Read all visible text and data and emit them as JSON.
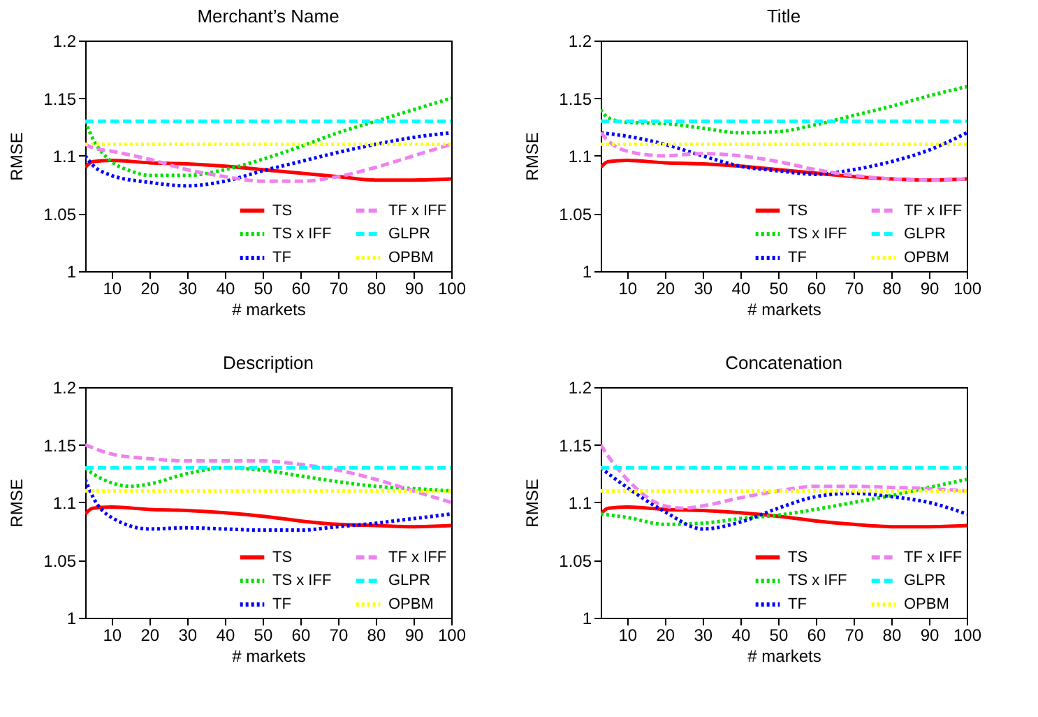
{
  "chart_data": [
    {
      "type": "line",
      "title": "Merchant’s Name",
      "xlabel": "# markets",
      "ylabel": "RMSE",
      "xlim": [
        3,
        100
      ],
      "ylim": [
        1,
        1.2
      ],
      "xticks": [
        10,
        20,
        30,
        40,
        50,
        60,
        70,
        80,
        90,
        100
      ],
      "yticks": [
        1,
        1.05,
        1.1,
        1.15,
        1.2
      ],
      "grid": false,
      "legend": "bottom",
      "marker": "none",
      "series": [
        {
          "name": "TS",
          "color": "#ff0000",
          "line_style": "solid",
          "x": [
            3,
            5,
            10,
            20,
            30,
            40,
            50,
            60,
            70,
            80,
            90,
            100
          ],
          "values": [
            1.09,
            1.095,
            1.096,
            1.094,
            1.093,
            1.091,
            1.088,
            1.085,
            1.082,
            1.079,
            1.079,
            1.08
          ]
        },
        {
          "name": "TS x IFF",
          "color": "#00e000",
          "line_style": "dotted",
          "x": [
            3,
            5,
            10,
            15,
            20,
            30,
            40,
            50,
            60,
            70,
            80,
            90,
            100
          ],
          "values": [
            1.13,
            1.115,
            1.095,
            1.087,
            1.083,
            1.083,
            1.088,
            1.097,
            1.108,
            1.12,
            1.13,
            1.14,
            1.15
          ]
        },
        {
          "name": "TF",
          "color": "#0000ff",
          "line_style": "dotted",
          "x": [
            3,
            5,
            10,
            20,
            30,
            40,
            50,
            60,
            70,
            80,
            90,
            100
          ],
          "values": [
            1.1,
            1.092,
            1.083,
            1.077,
            1.074,
            1.078,
            1.087,
            1.095,
            1.103,
            1.11,
            1.116,
            1.12
          ]
        },
        {
          "name": "TF x IFF",
          "color": "#ee82ee",
          "line_style": "dashed",
          "x": [
            3,
            5,
            10,
            20,
            30,
            40,
            50,
            60,
            70,
            80,
            90,
            100
          ],
          "values": [
            1.11,
            1.107,
            1.104,
            1.097,
            1.088,
            1.082,
            1.078,
            1.078,
            1.082,
            1.09,
            1.1,
            1.11
          ]
        },
        {
          "name": "GLPR",
          "color": "#00ffff",
          "line_style": "dashed",
          "x": [
            3,
            100
          ],
          "values": [
            1.13,
            1.13
          ]
        },
        {
          "name": "OPBM",
          "color": "#ffff00",
          "line_style": "dotted",
          "x": [
            3,
            100
          ],
          "values": [
            1.11,
            1.11
          ]
        }
      ]
    },
    {
      "type": "line",
      "title": "Title",
      "xlabel": "# markets",
      "ylabel": "RMSE",
      "xlim": [
        3,
        100
      ],
      "ylim": [
        1,
        1.2
      ],
      "xticks": [
        10,
        20,
        30,
        40,
        50,
        60,
        70,
        80,
        90,
        100
      ],
      "yticks": [
        1,
        1.05,
        1.1,
        1.15,
        1.2
      ],
      "grid": false,
      "legend": "bottom",
      "marker": "none",
      "series": [
        {
          "name": "TS",
          "color": "#ff0000",
          "line_style": "solid",
          "x": [
            3,
            5,
            10,
            20,
            30,
            40,
            50,
            60,
            70,
            80,
            90,
            100
          ],
          "values": [
            1.09,
            1.095,
            1.096,
            1.094,
            1.093,
            1.091,
            1.088,
            1.085,
            1.082,
            1.08,
            1.079,
            1.08
          ]
        },
        {
          "name": "TS x IFF",
          "color": "#00e000",
          "line_style": "dotted",
          "x": [
            3,
            5,
            10,
            20,
            30,
            40,
            50,
            60,
            70,
            80,
            90,
            100
          ],
          "values": [
            1.14,
            1.133,
            1.129,
            1.128,
            1.124,
            1.12,
            1.121,
            1.127,
            1.135,
            1.143,
            1.152,
            1.16
          ]
        },
        {
          "name": "TF",
          "color": "#0000ff",
          "line_style": "dotted",
          "x": [
            3,
            10,
            20,
            30,
            40,
            50,
            60,
            70,
            80,
            90,
            100
          ],
          "values": [
            1.12,
            1.117,
            1.11,
            1.1,
            1.091,
            1.087,
            1.084,
            1.088,
            1.095,
            1.105,
            1.12
          ]
        },
        {
          "name": "TF x IFF",
          "color": "#ee82ee",
          "line_style": "dashed",
          "x": [
            3,
            5,
            10,
            20,
            30,
            40,
            50,
            60,
            70,
            80,
            90,
            100
          ],
          "values": [
            1.12,
            1.113,
            1.104,
            1.1,
            1.102,
            1.1,
            1.095,
            1.088,
            1.083,
            1.08,
            1.079,
            1.08
          ]
        },
        {
          "name": "GLPR",
          "color": "#00ffff",
          "line_style": "dashed",
          "x": [
            3,
            100
          ],
          "values": [
            1.13,
            1.13
          ]
        },
        {
          "name": "OPBM",
          "color": "#ffff00",
          "line_style": "dotted",
          "x": [
            3,
            100
          ],
          "values": [
            1.11,
            1.11
          ]
        }
      ]
    },
    {
      "type": "line",
      "title": "Description",
      "xlabel": "# markets",
      "ylabel": "RMSE",
      "xlim": [
        3,
        100
      ],
      "ylim": [
        1,
        1.2
      ],
      "xticks": [
        10,
        20,
        30,
        40,
        50,
        60,
        70,
        80,
        90,
        100
      ],
      "yticks": [
        1,
        1.05,
        1.1,
        1.15,
        1.2
      ],
      "grid": false,
      "legend": "bottom",
      "marker": "none",
      "series": [
        {
          "name": "TS",
          "color": "#ff0000",
          "line_style": "solid",
          "x": [
            3,
            5,
            10,
            20,
            30,
            40,
            50,
            60,
            70,
            80,
            90,
            100
          ],
          "values": [
            1.09,
            1.095,
            1.096,
            1.094,
            1.093,
            1.091,
            1.088,
            1.084,
            1.081,
            1.08,
            1.079,
            1.08
          ]
        },
        {
          "name": "TS x IFF",
          "color": "#00e000",
          "line_style": "dotted",
          "x": [
            3,
            5,
            10,
            15,
            20,
            30,
            40,
            50,
            60,
            70,
            80,
            90,
            100
          ],
          "values": [
            1.13,
            1.125,
            1.117,
            1.114,
            1.116,
            1.125,
            1.13,
            1.128,
            1.123,
            1.118,
            1.114,
            1.112,
            1.11
          ]
        },
        {
          "name": "TF",
          "color": "#0000ff",
          "line_style": "dotted",
          "x": [
            3,
            5,
            10,
            20,
            30,
            40,
            50,
            60,
            70,
            80,
            90,
            100
          ],
          "values": [
            1.12,
            1.105,
            1.087,
            1.077,
            1.078,
            1.077,
            1.076,
            1.076,
            1.079,
            1.082,
            1.086,
            1.09
          ]
        },
        {
          "name": "TF x IFF",
          "color": "#ee82ee",
          "line_style": "dashed",
          "x": [
            3,
            10,
            20,
            30,
            40,
            50,
            60,
            70,
            80,
            90,
            100
          ],
          "values": [
            1.15,
            1.142,
            1.138,
            1.136,
            1.136,
            1.136,
            1.133,
            1.128,
            1.12,
            1.11,
            1.1
          ]
        },
        {
          "name": "GLPR",
          "color": "#00ffff",
          "line_style": "dashed",
          "x": [
            3,
            100
          ],
          "values": [
            1.13,
            1.13
          ]
        },
        {
          "name": "OPBM",
          "color": "#ffff00",
          "line_style": "dotted",
          "x": [
            3,
            100
          ],
          "values": [
            1.11,
            1.11
          ]
        }
      ]
    },
    {
      "type": "line",
      "title": "Concatenation",
      "xlabel": "# markets",
      "ylabel": "RMSE",
      "xlim": [
        3,
        100
      ],
      "ylim": [
        1,
        1.2
      ],
      "xticks": [
        10,
        20,
        30,
        40,
        50,
        60,
        70,
        80,
        90,
        100
      ],
      "yticks": [
        1,
        1.05,
        1.1,
        1.15,
        1.2
      ],
      "grid": false,
      "legend": "bottom",
      "marker": "none",
      "series": [
        {
          "name": "TS",
          "color": "#ff0000",
          "line_style": "solid",
          "x": [
            3,
            5,
            10,
            20,
            30,
            40,
            50,
            60,
            70,
            80,
            90,
            100
          ],
          "values": [
            1.09,
            1.095,
            1.096,
            1.094,
            1.093,
            1.091,
            1.088,
            1.084,
            1.081,
            1.079,
            1.079,
            1.08
          ]
        },
        {
          "name": "TS x IFF",
          "color": "#00e000",
          "line_style": "dotted",
          "x": [
            3,
            10,
            20,
            30,
            40,
            50,
            60,
            70,
            80,
            90,
            100
          ],
          "values": [
            1.09,
            1.087,
            1.081,
            1.082,
            1.086,
            1.089,
            1.094,
            1.1,
            1.106,
            1.113,
            1.12
          ]
        },
        {
          "name": "TF",
          "color": "#0000ff",
          "line_style": "dotted",
          "x": [
            3,
            10,
            20,
            30,
            40,
            50,
            60,
            70,
            80,
            90,
            100
          ],
          "values": [
            1.13,
            1.113,
            1.092,
            1.077,
            1.083,
            1.095,
            1.105,
            1.108,
            1.105,
            1.1,
            1.09
          ]
        },
        {
          "name": "TF x IFF",
          "color": "#ee82ee",
          "line_style": "dashed",
          "x": [
            3,
            5,
            10,
            20,
            25,
            30,
            40,
            50,
            60,
            70,
            80,
            90,
            100
          ],
          "values": [
            1.15,
            1.14,
            1.12,
            1.097,
            1.095,
            1.097,
            1.104,
            1.11,
            1.114,
            1.114,
            1.113,
            1.112,
            1.11
          ]
        },
        {
          "name": "GLPR",
          "color": "#00ffff",
          "line_style": "dashed",
          "x": [
            3,
            100
          ],
          "values": [
            1.13,
            1.13
          ]
        },
        {
          "name": "OPBM",
          "color": "#ffff00",
          "line_style": "dotted",
          "x": [
            3,
            100
          ],
          "values": [
            1.11,
            1.11
          ]
        }
      ]
    }
  ]
}
